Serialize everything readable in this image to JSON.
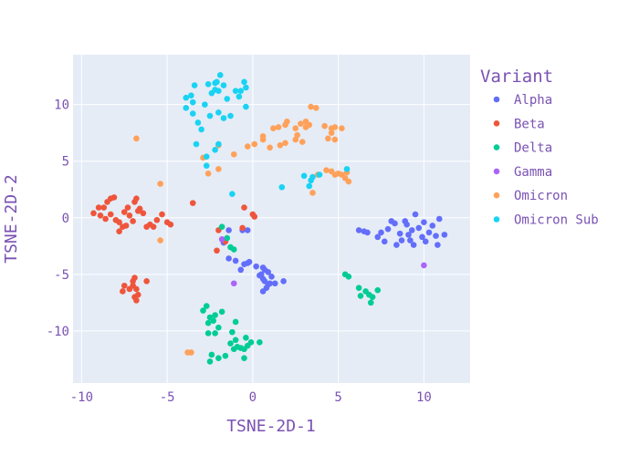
{
  "chart_data": {
    "type": "scatter",
    "xlabel": "TSNE-2D-1",
    "ylabel": "TSNE-2D-2",
    "xlim": [
      -10.5,
      12.7
    ],
    "ylim": [
      -14.6,
      14.4
    ],
    "xticks": [
      -10,
      -5,
      0,
      5,
      10
    ],
    "yticks": [
      -10,
      -5,
      0,
      5,
      10
    ],
    "grid": true,
    "background": "#e5ecf6",
    "legend": {
      "title": "Variant",
      "position": "right"
    },
    "series": [
      {
        "name": "Alpha",
        "color": "#636efa",
        "points": [
          [
            -1.4,
            -1.1
          ],
          [
            -0.6,
            -1.1
          ],
          [
            -0.3,
            -1.1
          ],
          [
            -1.7,
            -2.2
          ],
          [
            -1.4,
            -3.6
          ],
          [
            -1.0,
            -3.8
          ],
          [
            -0.7,
            -4.6
          ],
          [
            -0.3,
            -4.0
          ],
          [
            0.2,
            -4.3
          ],
          [
            0.6,
            -4.4
          ],
          [
            0.4,
            -5.1
          ],
          [
            0.6,
            -5.4
          ],
          [
            0.7,
            -5.6
          ],
          [
            0.9,
            -5.9
          ],
          [
            0.8,
            -6.2
          ],
          [
            0.6,
            -6.5
          ],
          [
            1.0,
            -5.8
          ],
          [
            1.3,
            -5.8
          ],
          [
            1.8,
            -5.6
          ],
          [
            0.9,
            -4.8
          ],
          [
            1.1,
            -5.2
          ],
          [
            0.5,
            -5.0
          ],
          [
            0.7,
            -4.6
          ],
          [
            -0.2,
            -3.9
          ],
          [
            -0.5,
            -4.1
          ],
          [
            6.2,
            -1.1
          ],
          [
            6.5,
            -1.2
          ],
          [
            6.7,
            -1.3
          ],
          [
            7.3,
            -1.7
          ],
          [
            7.7,
            -2.1
          ],
          [
            7.9,
            -1.0
          ],
          [
            8.1,
            -0.3
          ],
          [
            8.3,
            -0.5
          ],
          [
            8.6,
            -1.4
          ],
          [
            8.9,
            -0.3
          ],
          [
            9.1,
            -1.5
          ],
          [
            9.2,
            -2.0
          ],
          [
            9.4,
            -2.4
          ],
          [
            9.3,
            -1.1
          ],
          [
            9.5,
            0.3
          ],
          [
            9.7,
            -0.9
          ],
          [
            9.9,
            -1.7
          ],
          [
            10.1,
            -2.1
          ],
          [
            10.3,
            -1.3
          ],
          [
            10.5,
            -0.7
          ],
          [
            10.7,
            -1.6
          ],
          [
            10.9,
            -0.1
          ],
          [
            11.2,
            -1.5
          ],
          [
            8.4,
            -2.4
          ],
          [
            8.7,
            -2.0
          ],
          [
            9.0,
            -0.6
          ],
          [
            10.0,
            -0.4
          ],
          [
            10.8,
            -2.4
          ],
          [
            7.5,
            -1.3
          ]
        ]
      },
      {
        "name": "Beta",
        "color": "#ef553b",
        "points": [
          [
            -9.3,
            0.4
          ],
          [
            -8.9,
            0.2
          ],
          [
            -8.7,
            0.9
          ],
          [
            -8.5,
            1.4
          ],
          [
            -8.3,
            1.7
          ],
          [
            -8.1,
            1.8
          ],
          [
            -8.3,
            0.3
          ],
          [
            -8.0,
            -0.2
          ],
          [
            -7.8,
            -0.4
          ],
          [
            -7.6,
            -0.8
          ],
          [
            -7.8,
            -1.2
          ],
          [
            -7.5,
            0.5
          ],
          [
            -7.3,
            0.9
          ],
          [
            -7.2,
            0.2
          ],
          [
            -7.0,
            -0.3
          ],
          [
            -6.9,
            1.4
          ],
          [
            -6.8,
            1.7
          ],
          [
            -6.6,
            0.8
          ],
          [
            -6.4,
            0.4
          ],
          [
            -6.2,
            -0.8
          ],
          [
            -6.0,
            -0.6
          ],
          [
            -5.8,
            -0.8
          ],
          [
            -5.6,
            -0.2
          ],
          [
            -5.3,
            0.3
          ],
          [
            -5.0,
            -0.4
          ],
          [
            -4.8,
            -0.6
          ],
          [
            -8.6,
            -0.1
          ],
          [
            -9.0,
            0.9
          ],
          [
            -7.4,
            -0.7
          ],
          [
            -6.7,
            0.6
          ],
          [
            -3.5,
            1.3
          ],
          [
            -7.5,
            -6.0
          ],
          [
            -7.2,
            -6.3
          ],
          [
            -7.0,
            -6.0
          ],
          [
            -6.8,
            -6.3
          ],
          [
            -6.9,
            -5.3
          ],
          [
            -7.0,
            -5.6
          ],
          [
            -6.9,
            -7.0
          ],
          [
            -6.8,
            -7.3
          ],
          [
            -6.2,
            -5.6
          ],
          [
            -7.6,
            -6.5
          ],
          [
            -6.7,
            -6.8
          ],
          [
            -2.0,
            -1.1
          ],
          [
            -1.6,
            -2.1
          ],
          [
            -2.1,
            -2.9
          ],
          [
            -0.6,
            -0.9
          ],
          [
            0.0,
            0.3
          ],
          [
            0.1,
            0.1
          ],
          [
            -0.5,
            0.9
          ]
        ]
      },
      {
        "name": "Delta",
        "color": "#00cc96",
        "points": [
          [
            -1.8,
            -0.8
          ],
          [
            -1.5,
            -1.8
          ],
          [
            -1.3,
            -2.6
          ],
          [
            -1.1,
            -2.8
          ],
          [
            -2.9,
            -8.2
          ],
          [
            -2.7,
            -7.8
          ],
          [
            -2.5,
            -8.8
          ],
          [
            -2.3,
            -9.1
          ],
          [
            -2.6,
            -9.3
          ],
          [
            -2.2,
            -8.6
          ],
          [
            -1.8,
            -8.3
          ],
          [
            -2.0,
            -9.7
          ],
          [
            -2.6,
            -10.2
          ],
          [
            -2.2,
            -10.2
          ],
          [
            -1.2,
            -10.1
          ],
          [
            -1.0,
            -9.2
          ],
          [
            -1.3,
            -11.1
          ],
          [
            -1.1,
            -11.6
          ],
          [
            -0.9,
            -11.4
          ],
          [
            -0.7,
            -11.5
          ],
          [
            -0.5,
            -11.6
          ],
          [
            -0.3,
            -11.3
          ],
          [
            -0.1,
            -11.0
          ],
          [
            0.4,
            -11.0
          ],
          [
            -1.0,
            -10.8
          ],
          [
            -0.4,
            -10.6
          ],
          [
            -2.4,
            -12.1
          ],
          [
            -2.0,
            -12.4
          ],
          [
            -1.6,
            -12.2
          ],
          [
            -0.5,
            -12.4
          ],
          [
            -2.5,
            -12.7
          ],
          [
            5.4,
            -5.0
          ],
          [
            5.6,
            -5.2
          ],
          [
            6.2,
            -6.2
          ],
          [
            6.3,
            -6.9
          ],
          [
            6.6,
            -6.5
          ],
          [
            6.8,
            -6.8
          ],
          [
            7.0,
            -7.0
          ],
          [
            6.9,
            -7.5
          ],
          [
            7.3,
            -6.4
          ]
        ]
      },
      {
        "name": "Gamma",
        "color": "#ab63fa",
        "points": [
          [
            -1.8,
            -1.9
          ],
          [
            -1.1,
            -5.8
          ],
          [
            10.0,
            -4.2
          ]
        ]
      },
      {
        "name": "Omicron",
        "color": "#ffa15a",
        "points": [
          [
            -6.8,
            7.0
          ],
          [
            -5.4,
            3.0
          ],
          [
            -5.4,
            -2.0
          ],
          [
            -3.8,
            -11.9
          ],
          [
            -3.6,
            -11.9
          ],
          [
            -2.9,
            5.3
          ],
          [
            -2.6,
            3.9
          ],
          [
            -2.0,
            4.3
          ],
          [
            -2.0,
            6.4
          ],
          [
            -1.1,
            5.6
          ],
          [
            -0.3,
            6.3
          ],
          [
            0.1,
            6.5
          ],
          [
            0.6,
            7.2
          ],
          [
            0.6,
            6.9
          ],
          [
            1.0,
            6.2
          ],
          [
            1.2,
            7.9
          ],
          [
            1.5,
            8.0
          ],
          [
            1.6,
            6.4
          ],
          [
            1.9,
            6.6
          ],
          [
            2.0,
            8.5
          ],
          [
            2.6,
            7.3
          ],
          [
            2.9,
            6.7
          ],
          [
            2.8,
            8.3
          ],
          [
            3.1,
            8.5
          ],
          [
            3.3,
            8.2
          ],
          [
            3.1,
            8.0
          ],
          [
            3.4,
            9.8
          ],
          [
            3.7,
            9.7
          ],
          [
            4.2,
            8.1
          ],
          [
            4.6,
            7.9
          ],
          [
            4.8,
            8.0
          ],
          [
            5.2,
            7.9
          ],
          [
            4.6,
            7.5
          ],
          [
            4.4,
            7.0
          ],
          [
            4.8,
            6.9
          ],
          [
            2.5,
            7.9
          ],
          [
            2.5,
            6.9
          ],
          [
            4.3,
            4.2
          ],
          [
            4.6,
            4.1
          ],
          [
            4.8,
            3.8
          ],
          [
            5.0,
            3.9
          ],
          [
            5.2,
            3.8
          ],
          [
            5.4,
            3.5
          ],
          [
            5.6,
            3.2
          ],
          [
            5.5,
            4.0
          ],
          [
            3.5,
            2.2
          ],
          [
            3.8,
            3.8
          ],
          [
            1.9,
            8.2
          ]
        ]
      },
      {
        "name": "Omicron Sub",
        "color": "#19d3f3",
        "points": [
          [
            -3.9,
            10.6
          ],
          [
            -3.6,
            10.8
          ],
          [
            -3.4,
            11.7
          ],
          [
            -3.9,
            9.7
          ],
          [
            -3.5,
            9.2
          ],
          [
            -2.6,
            11.8
          ],
          [
            -2.4,
            11.0
          ],
          [
            -2.2,
            11.3
          ],
          [
            -2.1,
            12.0
          ],
          [
            -2.0,
            11.2
          ],
          [
            -1.9,
            12.6
          ],
          [
            -1.7,
            11.7
          ],
          [
            -1.5,
            10.5
          ],
          [
            -1.3,
            9.0
          ],
          [
            -1.0,
            11.2
          ],
          [
            -0.8,
            10.7
          ],
          [
            -0.7,
            11.2
          ],
          [
            -0.5,
            12.0
          ],
          [
            -0.4,
            9.8
          ],
          [
            -2.8,
            10.0
          ],
          [
            -2.5,
            9.0
          ],
          [
            -2.0,
            9.3
          ],
          [
            -1.7,
            8.8
          ],
          [
            -3.2,
            8.4
          ],
          [
            -3.0,
            7.8
          ],
          [
            -3.3,
            6.5
          ],
          [
            -2.7,
            5.4
          ],
          [
            -2.7,
            4.6
          ],
          [
            -2.2,
            6.0
          ],
          [
            -2.0,
            6.5
          ],
          [
            -3.5,
            10.2
          ],
          [
            -1.2,
            2.1
          ],
          [
            1.7,
            2.7
          ],
          [
            3.0,
            3.7
          ],
          [
            3.4,
            3.3
          ],
          [
            3.3,
            2.8
          ],
          [
            3.5,
            3.6
          ],
          [
            3.9,
            3.8
          ],
          [
            5.5,
            4.3
          ],
          [
            -2.2,
            11.9
          ],
          [
            -0.4,
            11.5
          ]
        ]
      }
    ]
  }
}
